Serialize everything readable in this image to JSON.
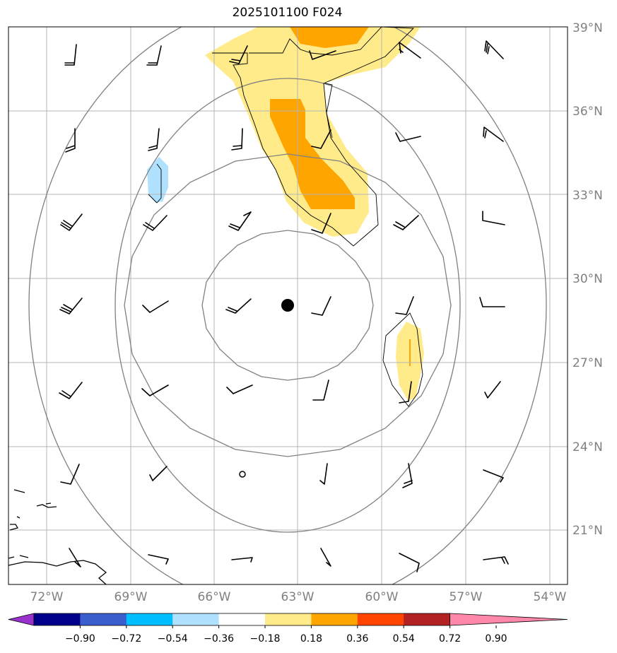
{
  "title": "2025101100 F024",
  "lat_labels": [
    "39°N",
    "36°N",
    "33°N",
    "30°N",
    "27°N",
    "24°N",
    "21°N"
  ],
  "lon_labels": [
    "72°W",
    "69°W",
    "66°W",
    "63°W",
    "60°W",
    "57°W",
    "54°W"
  ],
  "colorbar": {
    "ticks": [
      "−0.90",
      "−0.72",
      "−0.54",
      "−0.36",
      "−0.18",
      "0.18",
      "0.36",
      "0.54",
      "0.72",
      "0.90"
    ],
    "colors": [
      "#9932cc",
      "#00008b",
      "#3a5fcd",
      "#00bfff",
      "#b0e2ff",
      "#ffffff",
      "#ffeb8a",
      "#ffa500",
      "#ff4500",
      "#b22222",
      "#ff88aa"
    ]
  },
  "center_marker": "black-dot",
  "wind_barbs": "present",
  "range_rings": 4
}
